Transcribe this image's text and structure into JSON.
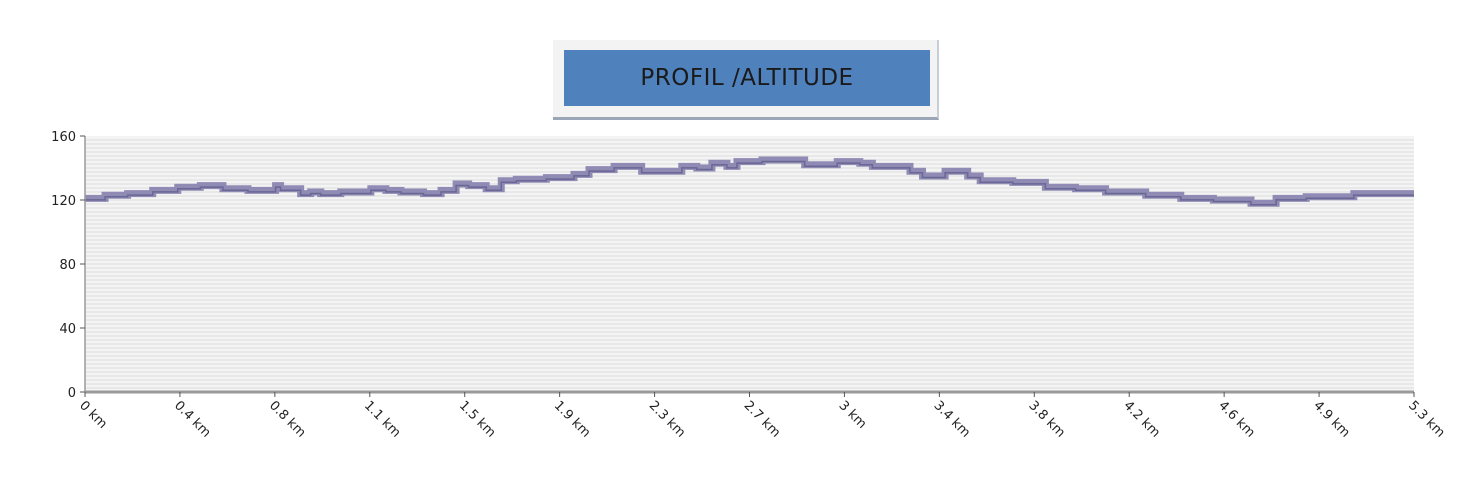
{
  "title": "PROFIL /ALTITUDE",
  "colors": {
    "line": "#8f8bb5",
    "line_dark": "#4a4b78",
    "plot_bg": "#f4f4f4",
    "grid": "#dcdcdc",
    "axis": "#9a9a9a",
    "title_box": "#4f81bd"
  },
  "chart_data": {
    "type": "line",
    "title": "PROFIL /ALTITUDE",
    "xlabel": "",
    "ylabel": "",
    "x_unit": "km",
    "xlim": [
      0,
      5.3
    ],
    "ylim": [
      0,
      160
    ],
    "grid": true,
    "y_ticks": [
      0,
      40,
      80,
      120,
      160
    ],
    "x_tick_labels": [
      "0 km",
      "0.4 km",
      "0.8 km",
      "1.1 km",
      "1.5 km",
      "1.9 km",
      "2.3 km",
      "2.7 km",
      "3 km",
      "3.4 km",
      "3.8 km",
      "4.2 km",
      "4.6 km",
      "4.9 km",
      "5.3 km"
    ],
    "series": [
      {
        "x": [
          0,
          0.08,
          0.17,
          0.27,
          0.37,
          0.46,
          0.55,
          0.65,
          0.76,
          0.78,
          0.86,
          0.9,
          0.94,
          1.02,
          1.14,
          1.2,
          1.26,
          1.35,
          1.42,
          1.48,
          1.53,
          1.6,
          1.66,
          1.72,
          1.84,
          1.95,
          2.01,
          2.11,
          2.22,
          2.38,
          2.44,
          2.5,
          2.56,
          2.6,
          2.7,
          2.79,
          2.87,
          2.96,
          3.0,
          3.09,
          3.14,
          3.29,
          3.34,
          3.43,
          3.52,
          3.57,
          3.7,
          3.83,
          3.95,
          4.07,
          4.23,
          4.37,
          4.5,
          4.65,
          4.7,
          4.75,
          4.87,
          5.06,
          5.2,
          5.3
        ],
        "y": [
          121,
          122,
          123,
          124,
          126,
          128,
          129,
          127,
          126,
          129,
          127,
          124,
          125,
          124,
          125,
          127,
          126,
          125,
          124,
          126,
          130,
          129,
          127,
          132,
          133,
          134,
          136,
          139,
          141,
          138,
          141,
          140,
          143,
          141,
          144,
          145,
          145,
          142,
          142,
          144,
          143,
          141,
          138,
          135,
          138,
          135,
          132,
          131,
          128,
          127,
          125,
          123,
          121,
          120,
          118,
          118,
          121,
          122,
          124,
          124
        ]
      }
    ]
  }
}
